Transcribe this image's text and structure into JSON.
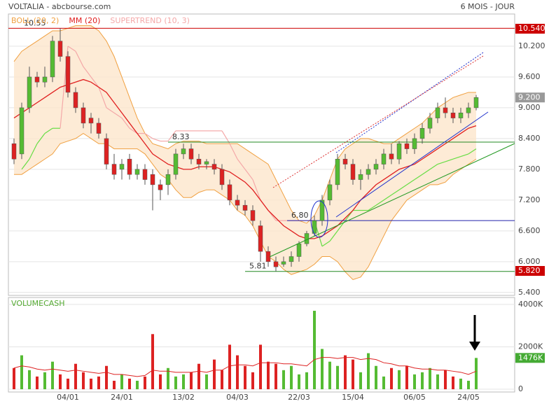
{
  "header": {
    "title": "VOLTALIA - abcbourse.com",
    "period": "6 MOIS - JOUR"
  },
  "chart_data": {
    "type": "candlestick",
    "indicators": [
      {
        "name": "BOLL (20, 2)",
        "color": "#f0a040"
      },
      {
        "name": "MM (20)",
        "color": "#e02020"
      },
      {
        "name": "SUPERTREND (10, 3)",
        "color": "#f4a8a8"
      }
    ],
    "up_color": "#55bb33",
    "down_color": "#dd2222",
    "supertrend_up_color": "#66dd44",
    "categories": [
      null,
      null,
      null,
      null,
      null,
      null,
      null,
      "04/01",
      null,
      null,
      null,
      null,
      null,
      null,
      "24/01",
      null,
      null,
      null,
      null,
      null,
      null,
      null,
      "13/02",
      null,
      null,
      null,
      null,
      null,
      null,
      "04/03",
      null,
      null,
      null,
      null,
      null,
      null,
      null,
      "22/03",
      null,
      null,
      null,
      null,
      null,
      null,
      "15/04",
      null,
      null,
      null,
      null,
      null,
      null,
      null,
      "06/05",
      null,
      null,
      null,
      null,
      null,
      null,
      "24/05",
      null
    ],
    "open": [
      8.3,
      8.1,
      9.0,
      9.6,
      9.5,
      9.6,
      10.3,
      10.0,
      9.3,
      9.0,
      8.8,
      8.7,
      8.4,
      7.9,
      7.8,
      8.0,
      7.7,
      7.8,
      7.7,
      7.5,
      7.5,
      7.7,
      8.1,
      8.2,
      8.0,
      7.9,
      7.9,
      7.8,
      7.5,
      7.2,
      7.1,
      7.0,
      6.7,
      6.2,
      6.0,
      5.95,
      6.0,
      6.1,
      6.35,
      6.55,
      6.8,
      7.2,
      7.5,
      8.0,
      7.9,
      7.6,
      7.7,
      7.8,
      7.9,
      8.1,
      8.0,
      8.3,
      8.2,
      8.4,
      8.6,
      8.8,
      9.0,
      8.9,
      8.8,
      8.9,
      9.0
    ],
    "high": [
      8.4,
      9.1,
      9.8,
      9.7,
      9.8,
      10.4,
      10.55,
      10.1,
      9.4,
      9.1,
      8.9,
      8.8,
      8.5,
      8.1,
      8.0,
      8.1,
      7.9,
      7.9,
      7.8,
      7.6,
      7.8,
      8.2,
      8.3,
      8.3,
      8.1,
      8.0,
      8.0,
      7.9,
      7.6,
      7.3,
      7.2,
      7.1,
      6.8,
      6.3,
      6.1,
      6.1,
      6.2,
      6.4,
      6.6,
      6.9,
      7.3,
      7.6,
      8.1,
      8.1,
      8.0,
      7.8,
      7.9,
      8.0,
      8.2,
      8.3,
      8.35,
      8.4,
      8.5,
      8.7,
      8.9,
      9.1,
      9.2,
      9.0,
      9.0,
      9.1,
      9.25
    ],
    "low": [
      7.9,
      8.0,
      8.9,
      9.4,
      9.4,
      9.5,
      9.9,
      9.2,
      8.9,
      8.6,
      8.5,
      8.4,
      7.8,
      7.6,
      7.6,
      7.6,
      7.6,
      7.5,
      7.0,
      7.2,
      7.3,
      7.6,
      8.0,
      7.9,
      7.8,
      7.8,
      7.7,
      7.4,
      7.1,
      7.0,
      6.9,
      6.7,
      6.0,
      5.9,
      5.81,
      5.9,
      5.9,
      6.0,
      6.3,
      6.5,
      6.7,
      7.1,
      7.4,
      7.8,
      7.5,
      7.4,
      7.6,
      7.7,
      7.8,
      7.9,
      7.9,
      8.1,
      8.1,
      8.3,
      8.5,
      8.7,
      8.8,
      8.7,
      8.7,
      8.8,
      8.95
    ],
    "close": [
      8.0,
      9.0,
      9.6,
      9.5,
      9.6,
      10.3,
      10.0,
      9.3,
      9.0,
      8.7,
      8.7,
      8.5,
      7.9,
      7.7,
      7.9,
      7.7,
      7.8,
      7.6,
      7.5,
      7.4,
      7.7,
      8.1,
      8.2,
      8.0,
      7.9,
      7.95,
      7.8,
      7.5,
      7.2,
      7.1,
      7.0,
      6.8,
      6.2,
      6.0,
      5.9,
      6.0,
      6.1,
      6.35,
      6.55,
      6.8,
      7.2,
      7.5,
      8.0,
      7.9,
      7.6,
      7.7,
      7.8,
      7.9,
      8.1,
      8.0,
      8.3,
      8.2,
      8.4,
      8.6,
      8.8,
      9.0,
      8.9,
      8.8,
      8.9,
      9.0,
      9.2
    ],
    "boll_upper": [
      9.9,
      10.1,
      10.2,
      10.3,
      10.4,
      10.5,
      10.5,
      10.55,
      10.6,
      10.6,
      10.6,
      10.5,
      10.3,
      10.0,
      9.6,
      9.2,
      8.8,
      8.5,
      8.3,
      8.25,
      8.2,
      8.3,
      8.35,
      8.35,
      8.35,
      8.3,
      8.3,
      8.3,
      8.3,
      8.3,
      8.2,
      8.1,
      8.0,
      7.9,
      7.6,
      7.3,
      7.0,
      6.8,
      6.75,
      6.9,
      7.2,
      7.6,
      8.0,
      8.2,
      8.3,
      8.4,
      8.4,
      8.35,
      8.3,
      8.3,
      8.4,
      8.5,
      8.6,
      8.7,
      8.85,
      9.0,
      9.1,
      9.2,
      9.25,
      9.3,
      9.3
    ],
    "boll_lower": [
      7.7,
      7.7,
      7.8,
      7.9,
      8.0,
      8.1,
      8.3,
      8.35,
      8.4,
      8.5,
      8.4,
      8.3,
      8.3,
      8.2,
      8.2,
      8.2,
      8.2,
      8.1,
      7.9,
      7.7,
      7.6,
      7.4,
      7.25,
      7.25,
      7.35,
      7.4,
      7.4,
      7.3,
      7.2,
      7.0,
      6.9,
      6.7,
      6.4,
      6.1,
      6.0,
      5.85,
      5.75,
      5.8,
      5.85,
      5.95,
      6.1,
      6.1,
      6.0,
      5.8,
      5.65,
      5.7,
      5.9,
      6.2,
      6.5,
      6.8,
      7.0,
      7.2,
      7.3,
      7.4,
      7.5,
      7.5,
      7.55,
      7.7,
      7.8,
      7.9,
      8.0
    ],
    "ma20": [
      8.8,
      8.9,
      9.0,
      9.1,
      9.2,
      9.3,
      9.4,
      9.45,
      9.5,
      9.55,
      9.5,
      9.4,
      9.3,
      9.1,
      8.9,
      8.7,
      8.5,
      8.3,
      8.1,
      8.0,
      7.9,
      7.85,
      7.8,
      7.8,
      7.85,
      7.85,
      7.85,
      7.8,
      7.75,
      7.65,
      7.55,
      7.4,
      7.2,
      7.0,
      6.85,
      6.7,
      6.6,
      6.5,
      6.45,
      6.45,
      6.5,
      6.6,
      6.7,
      6.85,
      7.0,
      7.2,
      7.35,
      7.5,
      7.6,
      7.7,
      7.8,
      7.85,
      7.9,
      8.0,
      8.1,
      8.2,
      8.3,
      8.4,
      8.5,
      8.6,
      8.65
    ],
    "supertrend": [
      null,
      7.8,
      8.0,
      8.3,
      8.5,
      8.6,
      8.6,
      10.2,
      10.1,
      9.8,
      9.6,
      9.4,
      9.0,
      8.9,
      8.8,
      8.6,
      8.5,
      8.5,
      8.4,
      8.35,
      8.35,
      8.55,
      8.55,
      8.55,
      8.55,
      8.55,
      8.55,
      8.55,
      8.3,
      8.0,
      7.8,
      7.6,
      7.2,
      7.0,
      6.8,
      6.8,
      6.8,
      6.8,
      6.8,
      6.8,
      6.3,
      6.4,
      6.6,
      6.8,
      7.0,
      7.0,
      7.0,
      7.1,
      7.2,
      7.3,
      7.4,
      7.5,
      7.6,
      7.7,
      7.8,
      7.9,
      7.95,
      8.0,
      8.05,
      8.1,
      8.2
    ],
    "ylim": [
      5.37,
      10.8
    ],
    "yticks": [
      {
        "value": 10.2,
        "label": "10.200"
      },
      {
        "value": 9.6,
        "label": "9.600"
      },
      {
        "value": 9.0,
        "label": "9.000"
      },
      {
        "value": 8.4,
        "label": "8.400"
      },
      {
        "value": 7.8,
        "label": "7.800"
      },
      {
        "value": 7.2,
        "label": "7.200"
      },
      {
        "value": 6.6,
        "label": "6.600"
      },
      {
        "value": 6.0,
        "label": "6.000"
      },
      {
        "value": 5.4,
        "label": "5.400"
      }
    ],
    "grid": true,
    "annotations": [
      {
        "value": 10.55,
        "color": "#cc0000"
      },
      {
        "value": 8.33,
        "color": "#228822"
      },
      {
        "value": {
          "value": 6.8,
          "label": "6.80"
        },
        "color": "#2222aa"
      },
      {
        "value": 5.81,
        "color": "#228822"
      }
    ],
    "price_tags": [
      {
        "value": 10.54,
        "label": "10.540",
        "color": "#cc0000"
      },
      {
        "value": 9.2,
        "label": "9.200",
        "color": "#999999"
      },
      {
        "value": 5.82,
        "label": "5.820",
        "color": "#cc0000"
      }
    ],
    "volume": {
      "title": "VOLUMECASH",
      "values": [
        1000,
        1600,
        900,
        600,
        800,
        1300,
        700,
        500,
        1200,
        800,
        500,
        600,
        1100,
        400,
        700,
        500,
        400,
        600,
        2600,
        700,
        1000,
        600,
        700,
        800,
        1200,
        700,
        1400,
        900,
        2100,
        1600,
        1100,
        800,
        2100,
        1300,
        1200,
        900,
        1100,
        700,
        800,
        3700,
        1900,
        1300,
        1100,
        1600,
        1400,
        800,
        1700,
        1100,
        600,
        1000,
        900,
        1100,
        700,
        800,
        1000,
        700,
        900,
        600,
        500,
        400,
        1476
      ],
      "ma": [
        1000,
        1100,
        1050,
        950,
        900,
        950,
        900,
        850,
        900,
        850,
        800,
        750,
        800,
        700,
        700,
        650,
        600,
        650,
        900,
        850,
        850,
        800,
        800,
        800,
        850,
        800,
        900,
        900,
        1100,
        1150,
        1150,
        1100,
        1250,
        1250,
        1250,
        1200,
        1200,
        1150,
        1100,
        1400,
        1500,
        1500,
        1450,
        1500,
        1500,
        1400,
        1450,
        1400,
        1250,
        1200,
        1100,
        1100,
        1000,
        950,
        950,
        900,
        900,
        850,
        800,
        700,
        850
      ],
      "ma_color": "#dd2222",
      "ylim": [
        -130,
        4260
      ],
      "yticks": [
        {
          "value": 4000,
          "label": "4000K"
        },
        {
          "value": 2000,
          "label": "2000K"
        },
        0
      ],
      "last": {
        "value": 1476,
        "label": "1476K",
        "color": "#44aa33"
      }
    }
  }
}
